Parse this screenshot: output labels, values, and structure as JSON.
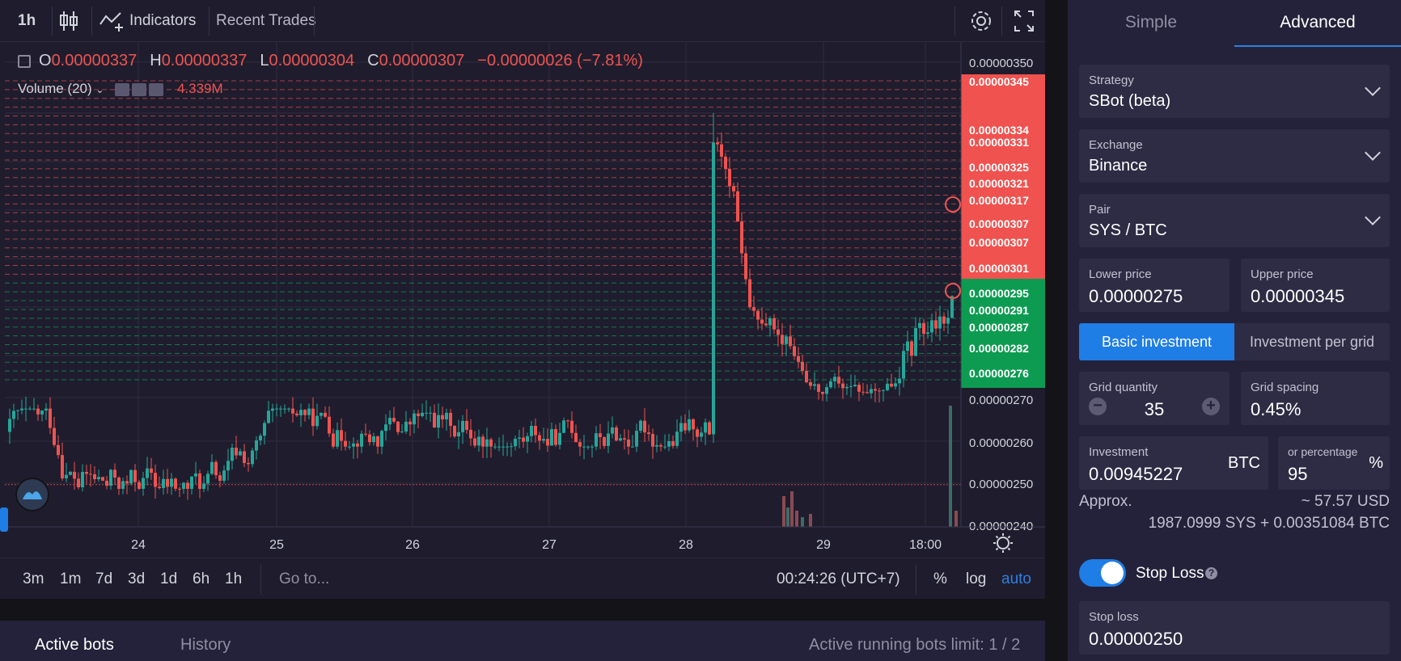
{
  "toolbar": {
    "interval": "1h",
    "indicators_label": "Indicators",
    "recent_trades_label": "Recent Trades",
    "settings_icon": "gear-icon",
    "fullscreen_icon": "expand-icon"
  },
  "legend": {
    "o_key": "O",
    "o_val": "0.00000337",
    "h_key": "H",
    "h_val": "0.00000337",
    "l_key": "L",
    "l_val": "0.00000304",
    "c_key": "C",
    "c_val": "0.00000307",
    "change": "−0.00000026 (−7.81%)",
    "volume_label": "Volume (20)",
    "volume_val": "4.339M"
  },
  "chart_data": {
    "type": "candlestick",
    "x_tick_labels": [
      "24",
      "25",
      "26",
      "27",
      "28",
      "29",
      "18:00"
    ],
    "y_tick_labels": [
      "0.00000350",
      "0.00000270",
      "0.00000260",
      "0.00000250",
      "0.00000240"
    ],
    "y_range": [
      2.4e-06,
      3.5e-06
    ],
    "last_price": 3.07e-06,
    "stop_loss_line": 2.5e-06,
    "sell_grid_labels": [
      "0.00000345",
      "0.00000334",
      "0.00000331",
      "0.00000325",
      "0.00000321",
      "0.00000317",
      "0.00000307",
      "0.00000307",
      "0.00000301"
    ],
    "buy_grid_labels": [
      "0.00000295",
      "0.00000291",
      "0.00000287",
      "0.00000282",
      "0.00000276"
    ],
    "sell_color": "#f0524f",
    "buy_color": "#0d9b51",
    "up_color": "#26a69a",
    "down_color": "#ef5350"
  },
  "bottom_bar": {
    "ranges": [
      "3m",
      "1m",
      "7d",
      "3d",
      "1d",
      "6h",
      "1h"
    ],
    "goto": "Go to...",
    "clock": "00:24:26 (UTC+7)",
    "percent": "%",
    "log": "log",
    "auto": "auto"
  },
  "bots_tabs": {
    "active": "Active bots",
    "history": "History",
    "limit": "Active running bots limit: 1 / 2"
  },
  "form": {
    "tab_simple": "Simple",
    "tab_advanced": "Advanced",
    "strategy_label": "Strategy",
    "strategy_value": "SBot (beta)",
    "exchange_label": "Exchange",
    "exchange_value": "Binance",
    "pair_label": "Pair",
    "pair_value": "SYS / BTC",
    "lower_label": "Lower price",
    "lower_value": "0.00000275",
    "upper_label": "Upper price",
    "upper_value": "0.00000345",
    "basic_investment": "Basic investment",
    "investment_per_grid": "Investment per grid",
    "grid_qty_label": "Grid quantity",
    "grid_qty_value": "35",
    "grid_spacing_label": "Grid spacing",
    "grid_spacing_value": "0.45%",
    "investment_label": "Investment",
    "investment_value": "0.00945227",
    "investment_unit": "BTC",
    "percentage_label": "or percentage",
    "percentage_value": "95",
    "percentage_unit": "%",
    "approx_label": "Approx.",
    "approx_usd": "~ 57.57 USD",
    "approx_breakdown": "1987.0999 SYS + 0.00351084 BTC",
    "stop_loss_toggle_label": "Stop Loss",
    "stop_loss_help": "?",
    "stop_loss_field_label": "Stop loss",
    "stop_loss_value": "0.00000250"
  }
}
